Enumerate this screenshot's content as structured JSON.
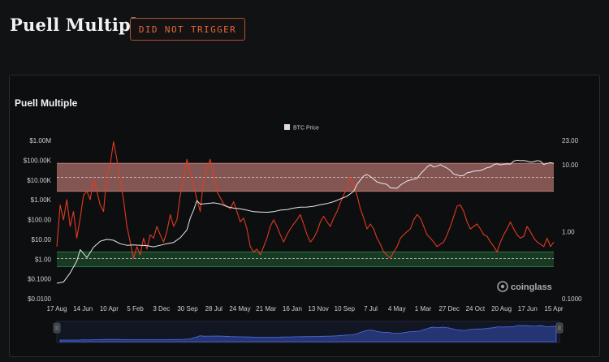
{
  "header": {
    "title": "Puell Multiple",
    "badge": "DID NOT TRIGGER"
  },
  "colors": {
    "background": "#111214",
    "badge": "#e2683a",
    "price_line": "#e8e8e8",
    "puell_line": "#e03b1f",
    "sell_zone": "#e7918a",
    "buy_zone": "#2f8a4a",
    "navigator": "#3a5bd6"
  },
  "chart_data": {
    "type": "line",
    "title": "Puell Multiple",
    "legend": {
      "label": "BTC Price",
      "placement": "top-center"
    },
    "watermark": "coinglass",
    "x_tick_labels": [
      "17 Aug",
      "14 Jun",
      "10 Apr",
      "5 Feb",
      "3 Dec",
      "30 Sep",
      "28 Jul",
      "24 May",
      "21 Mar",
      "16 Jan",
      "13 Nov",
      "10 Sep",
      "7 Jul",
      "4 May",
      "1 Mar",
      "27 Dec",
      "24 Oct",
      "20 Aug",
      "17 Jun",
      "15 Apr"
    ],
    "y_left": {
      "scale": "log",
      "range": [
        0.01,
        1000000
      ],
      "tick_labels": [
        "$1.00M",
        "$100.00K",
        "$10.00K",
        "$1.00K",
        "$100.00",
        "$10.00",
        "$1.00",
        "$0.1000",
        "$0.0100"
      ]
    },
    "y_right": {
      "scale": "log",
      "range": [
        0.1,
        23
      ],
      "tick_labels": [
        "23.00",
        "10.00",
        "1.00",
        "0.1000"
      ]
    },
    "bands": [
      {
        "name": "sell zone",
        "axis": "right",
        "range": [
          4,
          10.5
        ],
        "color": "#e7918a"
      },
      {
        "name": "buy zone",
        "axis": "right",
        "range": [
          0.3,
          0.5
        ],
        "color": "#2f8a4a"
      }
    ],
    "reference_lines_right": [
      6.5,
      0.4
    ],
    "series": [
      {
        "name": "BTC Price",
        "axis": "left",
        "color": "#e8e8e8",
        "points": [
          [
            0,
            0.06
          ],
          [
            2,
            0.07
          ],
          [
            4,
            0.2
          ],
          [
            6,
            0.8
          ],
          [
            7,
            3
          ],
          [
            9,
            1.2
          ],
          [
            11,
            4
          ],
          [
            13,
            8
          ],
          [
            15,
            10
          ],
          [
            17,
            9
          ],
          [
            19,
            6
          ],
          [
            21,
            5
          ],
          [
            23,
            5.2
          ],
          [
            25,
            5
          ],
          [
            27,
            4.8
          ],
          [
            29,
            4.2
          ],
          [
            31,
            5
          ],
          [
            33,
            6
          ],
          [
            35,
            7
          ],
          [
            37,
            12
          ],
          [
            39,
            30
          ],
          [
            40,
            120
          ],
          [
            41,
            300
          ],
          [
            42,
            900
          ],
          [
            43,
            600
          ],
          [
            45,
            650
          ],
          [
            47,
            700
          ],
          [
            49,
            620
          ],
          [
            51,
            450
          ],
          [
            53,
            380
          ],
          [
            55,
            350
          ],
          [
            57,
            300
          ],
          [
            59,
            250
          ],
          [
            61,
            240
          ],
          [
            63,
            235
          ],
          [
            65,
            250
          ],
          [
            67,
            300
          ],
          [
            69,
            320
          ],
          [
            71,
            380
          ],
          [
            73,
            420
          ],
          [
            75,
            430
          ],
          [
            77,
            470
          ],
          [
            79,
            560
          ],
          [
            81,
            640
          ],
          [
            83,
            800
          ],
          [
            85,
            1100
          ],
          [
            87,
            1500
          ],
          [
            89,
            2700
          ],
          [
            90,
            6000
          ],
          [
            91,
            10000
          ],
          [
            92,
            16000
          ],
          [
            93,
            19000
          ],
          [
            94,
            15000
          ],
          [
            95,
            11000
          ],
          [
            96,
            8000
          ],
          [
            97,
            7000
          ],
          [
            98,
            6500
          ],
          [
            99,
            6000
          ],
          [
            100,
            4000
          ],
          [
            101,
            3900
          ],
          [
            102,
            3800
          ],
          [
            103,
            5500
          ],
          [
            104,
            7000
          ],
          [
            105,
            9000
          ],
          [
            106,
            10000
          ],
          [
            107,
            11000
          ],
          [
            108,
            12000
          ],
          [
            109,
            20000
          ],
          [
            110,
            30000
          ],
          [
            111,
            45000
          ],
          [
            112,
            60000
          ],
          [
            113,
            45000
          ],
          [
            114,
            50000
          ],
          [
            115,
            60000
          ],
          [
            116,
            48000
          ],
          [
            117,
            40000
          ],
          [
            118,
            30000
          ],
          [
            119,
            20000
          ],
          [
            120,
            18000
          ],
          [
            121,
            16000
          ],
          [
            122,
            17000
          ],
          [
            123,
            23000
          ],
          [
            124,
            25000
          ],
          [
            125,
            28000
          ],
          [
            126,
            29000
          ],
          [
            127,
            30000
          ],
          [
            128,
            35000
          ],
          [
            129,
            42000
          ],
          [
            130,
            45000
          ],
          [
            131,
            60000
          ],
          [
            132,
            65000
          ],
          [
            133,
            58000
          ],
          [
            134,
            62000
          ],
          [
            135,
            65000
          ],
          [
            136,
            63000
          ],
          [
            137,
            90000
          ],
          [
            138,
            100000
          ],
          [
            139,
            95000
          ],
          [
            140,
            97000
          ],
          [
            141,
            90000
          ],
          [
            142,
            80000
          ],
          [
            143,
            85000
          ],
          [
            144,
            95000
          ],
          [
            145,
            90000
          ],
          [
            146,
            60000
          ],
          [
            147,
            70000
          ],
          [
            148,
            75000
          ],
          [
            149,
            70000
          ]
        ]
      },
      {
        "name": "Puell Multiple",
        "axis": "right",
        "color": "#e03b1f",
        "points": [
          [
            0,
            0.6
          ],
          [
            1,
            2.5
          ],
          [
            2,
            1.5
          ],
          [
            3,
            3
          ],
          [
            4,
            1.2
          ],
          [
            5,
            2
          ],
          [
            6,
            0.8
          ],
          [
            7,
            1.6
          ],
          [
            8,
            3.5
          ],
          [
            9,
            4
          ],
          [
            10,
            3
          ],
          [
            11,
            6
          ],
          [
            12,
            4
          ],
          [
            13,
            2.5
          ],
          [
            14,
            2
          ],
          [
            15,
            7
          ],
          [
            16,
            10
          ],
          [
            17,
            22
          ],
          [
            18,
            12
          ],
          [
            19,
            6
          ],
          [
            20,
            3
          ],
          [
            21,
            1.2
          ],
          [
            22,
            0.7
          ],
          [
            23,
            0.4
          ],
          [
            24,
            0.6
          ],
          [
            25,
            0.45
          ],
          [
            26,
            0.8
          ],
          [
            27,
            0.55
          ],
          [
            28,
            0.9
          ],
          [
            29,
            0.8
          ],
          [
            30,
            1.2
          ],
          [
            31,
            0.9
          ],
          [
            32,
            0.7
          ],
          [
            33,
            1
          ],
          [
            34,
            1.8
          ],
          [
            35,
            1.2
          ],
          [
            36,
            1.5
          ],
          [
            37,
            3.5
          ],
          [
            38,
            6
          ],
          [
            39,
            12
          ],
          [
            40,
            8
          ],
          [
            41,
            5
          ],
          [
            42,
            3
          ],
          [
            43,
            2
          ],
          [
            44,
            6
          ],
          [
            45,
            9
          ],
          [
            46,
            12
          ],
          [
            47,
            7
          ],
          [
            48,
            4
          ],
          [
            49,
            3.2
          ],
          [
            50,
            2.6
          ],
          [
            51,
            2.4
          ],
          [
            52,
            2.2
          ],
          [
            53,
            2.8
          ],
          [
            54,
            2
          ],
          [
            55,
            1.4
          ],
          [
            56,
            1.6
          ],
          [
            57,
            1.1
          ],
          [
            58,
            0.6
          ],
          [
            59,
            0.5
          ],
          [
            60,
            0.55
          ],
          [
            61,
            0.45
          ],
          [
            62,
            0.6
          ],
          [
            63,
            0.8
          ],
          [
            64,
            1.2
          ],
          [
            65,
            1.5
          ],
          [
            66,
            1.2
          ],
          [
            67,
            0.9
          ],
          [
            68,
            0.7
          ],
          [
            69,
            0.9
          ],
          [
            70,
            1.1
          ],
          [
            71,
            1.3
          ],
          [
            72,
            1.5
          ],
          [
            73,
            1.8
          ],
          [
            74,
            1.3
          ],
          [
            75,
            0.9
          ],
          [
            76,
            0.7
          ],
          [
            77,
            0.8
          ],
          [
            78,
            1
          ],
          [
            79,
            1.4
          ],
          [
            80,
            1.7
          ],
          [
            81,
            1.4
          ],
          [
            82,
            1.2
          ],
          [
            83,
            1.6
          ],
          [
            84,
            2
          ],
          [
            85,
            2.7
          ],
          [
            86,
            3.5
          ],
          [
            87,
            4.5
          ],
          [
            88,
            6.5
          ],
          [
            89,
            5
          ],
          [
            90,
            3.5
          ],
          [
            91,
            2.2
          ],
          [
            92,
            1.6
          ],
          [
            93,
            1.1
          ],
          [
            94,
            1.3
          ],
          [
            95,
            1.1
          ],
          [
            96,
            0.8
          ],
          [
            97,
            0.65
          ],
          [
            98,
            0.5
          ],
          [
            99,
            0.45
          ],
          [
            100,
            0.4
          ],
          [
            101,
            0.5
          ],
          [
            102,
            0.6
          ],
          [
            103,
            0.8
          ],
          [
            104,
            0.9
          ],
          [
            105,
            1
          ],
          [
            106,
            1.1
          ],
          [
            107,
            1.5
          ],
          [
            108,
            1.8
          ],
          [
            109,
            1.6
          ],
          [
            110,
            1.2
          ],
          [
            111,
            0.9
          ],
          [
            112,
            0.8
          ],
          [
            113,
            0.7
          ],
          [
            114,
            0.6
          ],
          [
            115,
            0.65
          ],
          [
            116,
            0.7
          ],
          [
            117,
            0.9
          ],
          [
            118,
            1.2
          ],
          [
            119,
            1.7
          ],
          [
            120,
            2.4
          ],
          [
            121,
            2.5
          ],
          [
            122,
            2
          ],
          [
            123,
            1.4
          ],
          [
            124,
            1.1
          ],
          [
            125,
            1.2
          ],
          [
            126,
            1.3
          ],
          [
            127,
            1.1
          ],
          [
            128,
            0.9
          ],
          [
            129,
            0.85
          ],
          [
            130,
            0.7
          ],
          [
            131,
            0.6
          ],
          [
            132,
            0.5
          ],
          [
            133,
            0.7
          ],
          [
            134,
            0.9
          ],
          [
            135,
            1.1
          ],
          [
            136,
            1.4
          ],
          [
            137,
            1.1
          ],
          [
            138,
            0.9
          ],
          [
            139,
            0.8
          ],
          [
            140,
            0.85
          ],
          [
            141,
            1.2
          ],
          [
            142,
            1
          ],
          [
            143,
            0.8
          ],
          [
            144,
            0.7
          ],
          [
            145,
            0.65
          ],
          [
            146,
            0.6
          ],
          [
            147,
            0.8
          ],
          [
            148,
            0.6
          ],
          [
            149,
            0.7
          ]
        ]
      }
    ]
  }
}
